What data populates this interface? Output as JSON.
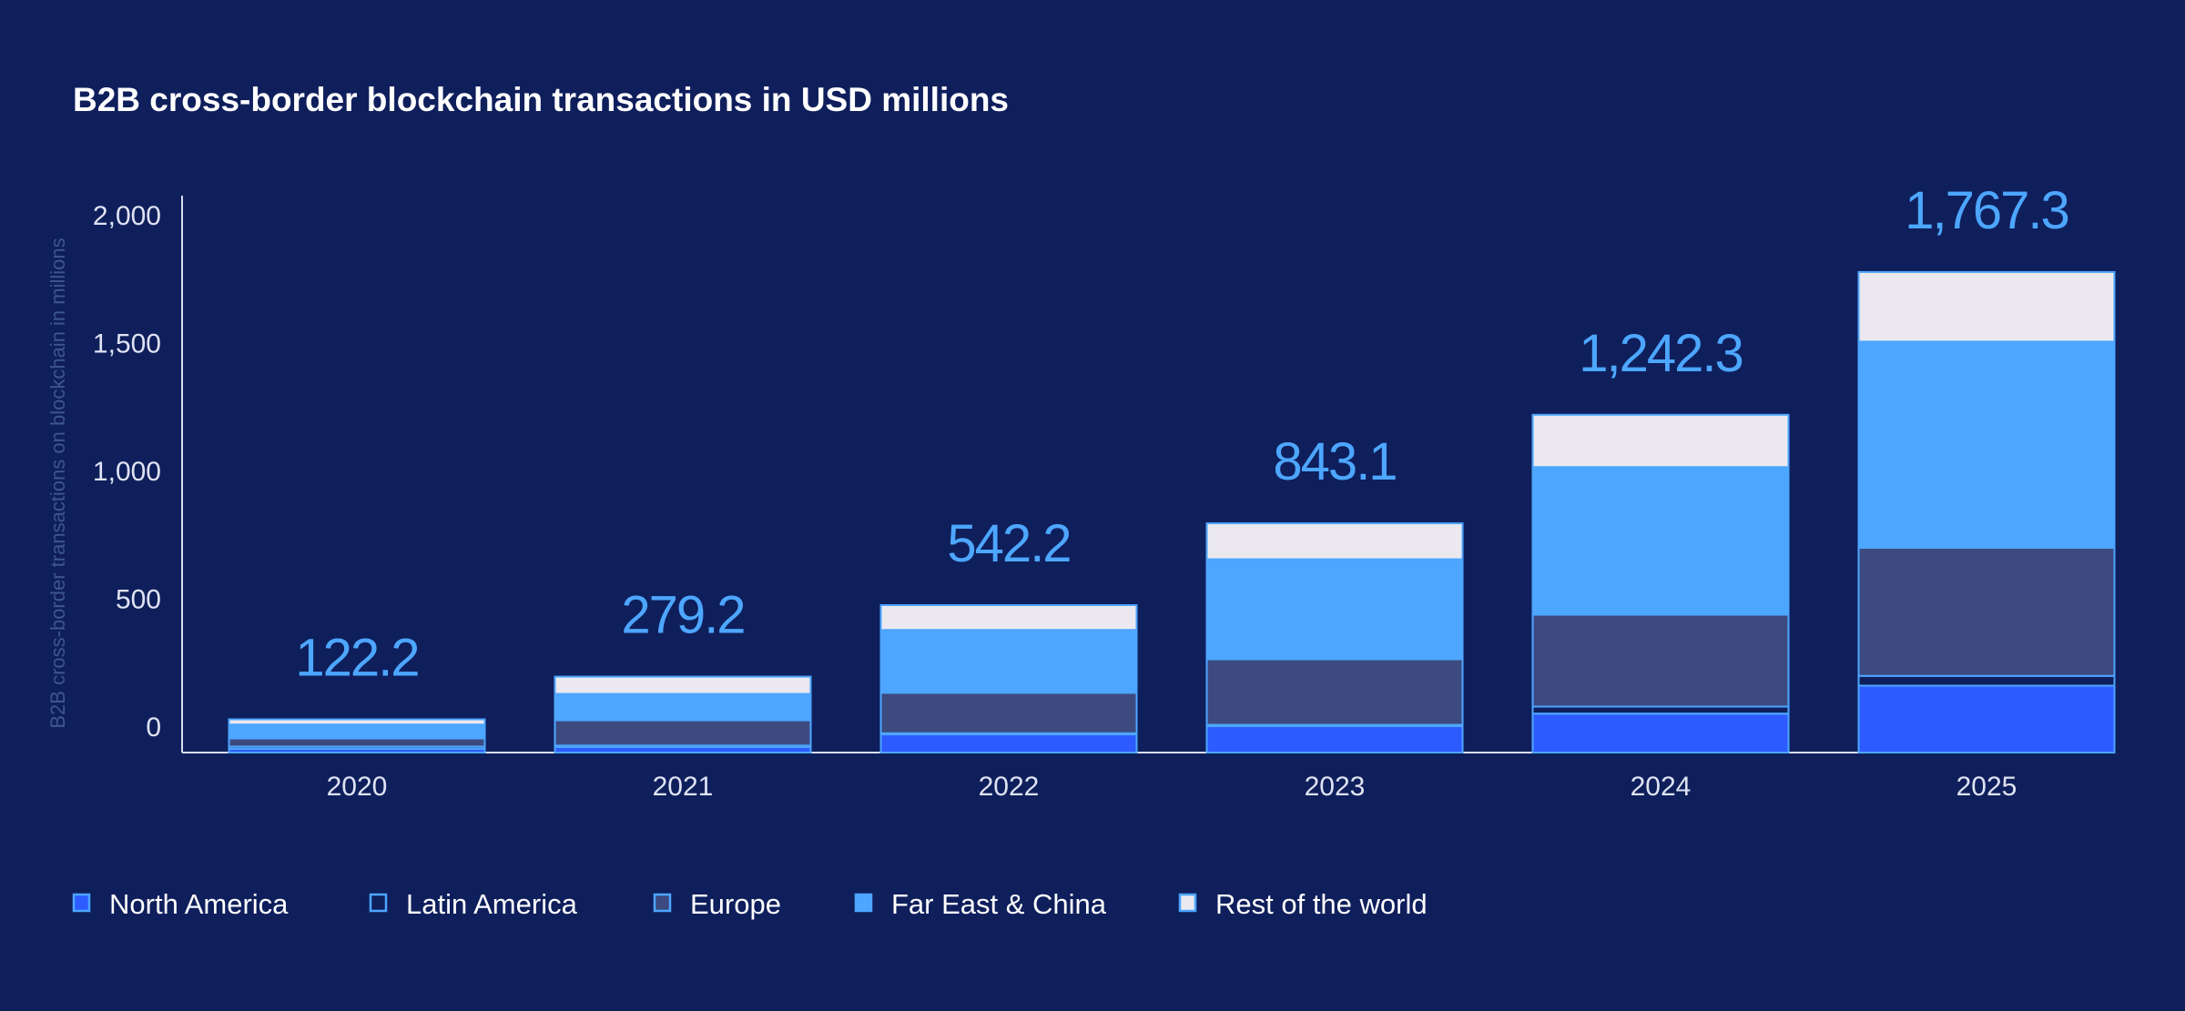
{
  "chart_data": {
    "type": "bar",
    "stacked": true,
    "title": "B2B cross-border blockchain transactions in USD millions",
    "ylabel": "B2B cross-border transactions on blockchain in millions",
    "xlabel": "",
    "ylim": [
      0,
      2000
    ],
    "yticks": [
      0,
      500,
      1000,
      1500,
      2000
    ],
    "ytick_labels": [
      "0",
      "500",
      "1,000",
      "1,500",
      "2,000"
    ],
    "grid": false,
    "legend_position": "bottom-left",
    "categories": [
      "2020",
      "2021",
      "2022",
      "2023",
      "2024",
      "2025"
    ],
    "totals": [
      122.2,
      279.2,
      542.2,
      843.1,
      1242.3,
      1767.3
    ],
    "total_labels": [
      "122.2",
      "279.2",
      "542.2",
      "843.1",
      "1,242.3",
      "1,767.3"
    ],
    "series": [
      {
        "name": "North America",
        "color": "#2d5bff",
        "values": [
          14,
          20.2,
          67,
          97,
          143,
          246
        ]
      },
      {
        "name": "Latin America",
        "color": "transparent",
        "values": [
          8,
          5.5,
          4,
          5,
          26,
          36
        ]
      },
      {
        "name": "Europe",
        "color": "#3d4a80",
        "values": [
          30,
          93,
          149,
          241,
          338,
          471
        ]
      },
      {
        "name": "Far East & China",
        "color": "#4da6ff",
        "values": [
          51,
          97,
          231,
          368,
          543,
          758.3
        ]
      },
      {
        "name": "Rest of the world",
        "color": "#ebe9ef",
        "values": [
          19.2,
          63.5,
          91.2,
          132.1,
          192.3,
          256
        ]
      }
    ],
    "colors": {
      "background": "#0f1f5c",
      "outline": "#4da6ff",
      "total_label": "#4da6ff",
      "axis": "#d8dcec",
      "ylabel": "#3d5590"
    }
  }
}
